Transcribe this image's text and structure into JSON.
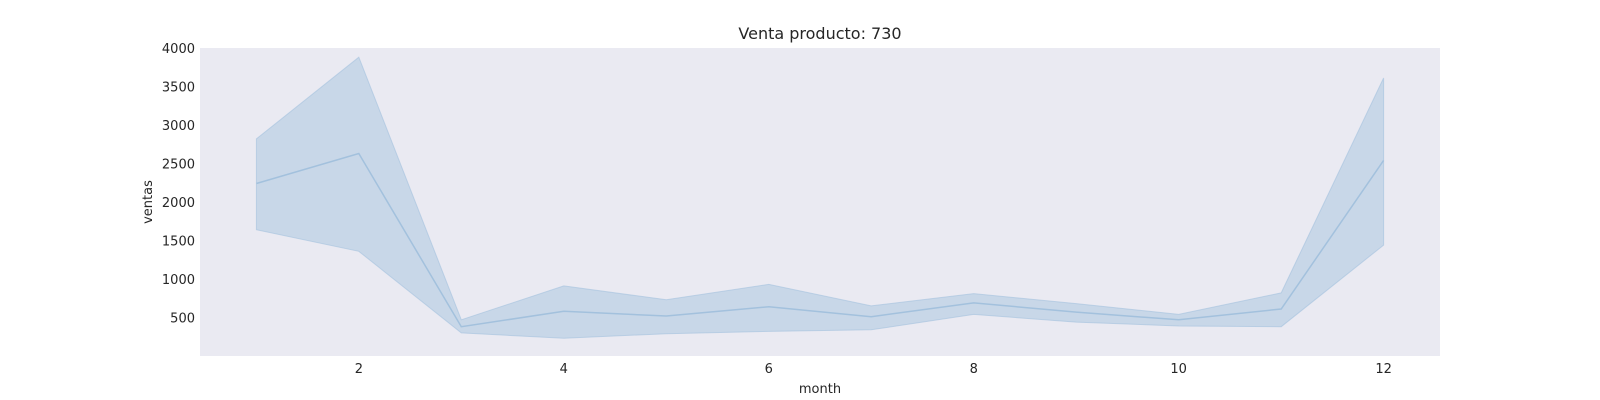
{
  "chart_data": {
    "type": "line",
    "title": "Venta producto: 730",
    "xlabel": "month",
    "ylabel": "ventas",
    "xlim": [
      0.45,
      12.55
    ],
    "ylim": [
      0,
      4000
    ],
    "x_ticks": [
      2,
      4,
      6,
      8,
      10,
      12
    ],
    "y_ticks": [
      500,
      1000,
      1500,
      2000,
      2500,
      3000,
      3500,
      4000
    ],
    "grid": false,
    "series": [
      {
        "x": [
          1,
          2,
          3,
          4,
          5,
          6,
          7,
          8,
          9,
          10,
          11,
          12
        ],
        "values": [
          2240,
          2630,
          380,
          580,
          520,
          640,
          510,
          690,
          570,
          470,
          610,
          2540
        ],
        "lower": [
          1640,
          1360,
          300,
          230,
          290,
          320,
          340,
          540,
          440,
          390,
          380,
          1440
        ],
        "upper": [
          2820,
          3880,
          470,
          910,
          730,
          930,
          650,
          810,
          680,
          540,
          820,
          3610
        ]
      }
    ],
    "colors": {
      "background": "#eaeaf2",
      "line": "#a3c1dd",
      "band": "#c2d4e6"
    }
  }
}
